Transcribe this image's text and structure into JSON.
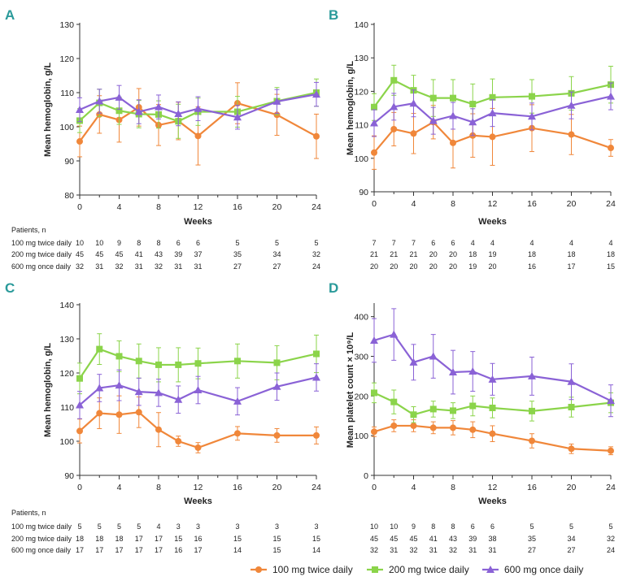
{
  "colors": {
    "orange": "#f0873a",
    "green": "#8bd44a",
    "purple": "#8a62d6",
    "letter": "#2a9a9a"
  },
  "legend": [
    {
      "name": "100 mg twice daily",
      "marker": "circle",
      "color": "#f0873a"
    },
    {
      "name": "200 mg twice daily",
      "marker": "square",
      "color": "#8bd44a"
    },
    {
      "name": "600 mg once daily",
      "marker": "triangle",
      "color": "#8a62d6"
    }
  ],
  "chart_data": [
    {
      "panel": "A",
      "type": "line",
      "xlabel": "Weeks",
      "ylabel": "Mean hemoglobin, g/L",
      "ylim": [
        80,
        130
      ],
      "yticks": [
        80,
        90,
        100,
        110,
        120,
        130
      ],
      "xticks": [
        0,
        4,
        8,
        12,
        16,
        20,
        24
      ],
      "series": [
        {
          "name": "100 mg twice daily",
          "x": [
            0,
            2,
            4,
            6,
            8,
            10,
            12,
            16,
            20,
            24
          ],
          "y": [
            95.7,
            103.6,
            102.0,
            105.7,
            100.5,
            101.7,
            97.3,
            106.9,
            103.5,
            97.2
          ],
          "err": [
            4.5,
            5.5,
            6.5,
            5.5,
            6.0,
            5.5,
            8.5,
            6.0,
            6.0,
            6.5
          ]
        },
        {
          "name": "200 mg twice daily",
          "x": [
            0,
            2,
            4,
            6,
            8,
            10,
            12,
            16,
            20,
            24
          ],
          "y": [
            101.8,
            107.0,
            104.7,
            103.7,
            103.6,
            101.6,
            104.4,
            104.4,
            107.5,
            110.0
          ],
          "err": [
            3.5,
            4.0,
            4.0,
            4.0,
            4.0,
            5.0,
            4.0,
            4.5,
            4.0,
            4.0
          ]
        },
        {
          "name": "600 mg once daily",
          "x": [
            0,
            2,
            4,
            6,
            8,
            10,
            12,
            16,
            20,
            24
          ],
          "y": [
            105.0,
            107.5,
            108.6,
            104.4,
            105.8,
            103.8,
            105.3,
            102.8,
            107.4,
            109.5
          ],
          "err": [
            3.5,
            3.5,
            3.5,
            3.5,
            3.5,
            3.5,
            3.5,
            3.5,
            3.5,
            3.5
          ]
        }
      ],
      "patients_header": "Patients, n",
      "patients": [
        {
          "label": "100 mg twice daily",
          "values": [
            "10",
            "10",
            "9",
            "8",
            "8",
            "6",
            "6",
            "5",
            "5",
            "5"
          ]
        },
        {
          "label": "200 mg twice daily",
          "values": [
            "45",
            "45",
            "45",
            "41",
            "43",
            "39",
            "37",
            "35",
            "34",
            "32"
          ]
        },
        {
          "label": "600 mg once daily",
          "values": [
            "32",
            "31",
            "32",
            "31",
            "32",
            "31",
            "31",
            "27",
            "27",
            "24"
          ]
        }
      ]
    },
    {
      "panel": "B",
      "type": "line",
      "xlabel": "Weeks",
      "ylabel": "Mean hemoglobin, g/L",
      "ylim": [
        90,
        140
      ],
      "yticks": [
        90,
        100,
        110,
        120,
        130,
        140
      ],
      "xticks": [
        0,
        4,
        8,
        12,
        16,
        20,
        24
      ],
      "series": [
        {
          "name": "100 mg twice daily",
          "x": [
            0,
            2,
            4,
            6,
            8,
            10,
            12,
            16,
            20,
            24
          ],
          "y": [
            101.7,
            108.7,
            107.4,
            110.8,
            104.6,
            106.8,
            106.4,
            109.0,
            107.1,
            103.1
          ],
          "err": [
            5.0,
            5.0,
            6.0,
            5.0,
            7.5,
            6.5,
            8.5,
            7.0,
            6.0,
            2.5
          ]
        },
        {
          "name": "200 mg twice daily",
          "x": [
            0,
            2,
            4,
            6,
            8,
            10,
            12,
            16,
            20,
            24
          ],
          "y": [
            115.3,
            123.3,
            120.3,
            118.0,
            118.0,
            116.2,
            118.2,
            118.5,
            119.4,
            122.0
          ],
          "err": [
            4.0,
            4.5,
            4.5,
            5.5,
            5.5,
            6.0,
            5.5,
            5.0,
            5.0,
            5.5
          ]
        },
        {
          "name": "600 mg once daily",
          "x": [
            0,
            2,
            4,
            6,
            8,
            10,
            12,
            16,
            20,
            24
          ],
          "y": [
            110.5,
            115.4,
            116.4,
            111.2,
            112.7,
            110.8,
            113.5,
            112.5,
            115.8,
            118.5
          ],
          "err": [
            4.0,
            4.0,
            4.0,
            4.0,
            4.0,
            4.0,
            4.0,
            4.0,
            4.0,
            4.0
          ]
        }
      ],
      "patients": [
        {
          "label": "100 mg twice daily",
          "values": [
            "7",
            "7",
            "7",
            "6",
            "6",
            "4",
            "4",
            "4",
            "4",
            "4"
          ]
        },
        {
          "label": "200 mg twice daily",
          "values": [
            "21",
            "21",
            "21",
            "20",
            "20",
            "18",
            "19",
            "18",
            "18",
            "18"
          ]
        },
        {
          "label": "600 mg once daily",
          "values": [
            "20",
            "20",
            "20",
            "20",
            "20",
            "19",
            "20",
            "16",
            "17",
            "15"
          ]
        }
      ]
    },
    {
      "panel": "C",
      "type": "line",
      "xlabel": "Weeks",
      "ylabel": "Mean hemoglobin, g/L",
      "ylim": [
        90,
        140
      ],
      "yticks": [
        90,
        100,
        110,
        120,
        130,
        140
      ],
      "xticks": [
        0,
        4,
        8,
        12,
        16,
        20,
        24
      ],
      "series": [
        {
          "name": "100 mg twice daily",
          "x": [
            0,
            2,
            4,
            6,
            8,
            10,
            12,
            16,
            20,
            24
          ],
          "y": [
            103.0,
            108.2,
            107.8,
            108.5,
            103.4,
            100.0,
            98.1,
            102.3,
            101.7,
            101.7
          ],
          "err": [
            3.5,
            4.5,
            5.5,
            4.5,
            5.0,
            1.5,
            1.5,
            2.0,
            2.0,
            2.5
          ]
        },
        {
          "name": "200 mg twice daily",
          "x": [
            0,
            2,
            4,
            6,
            8,
            10,
            12,
            16,
            20,
            24
          ],
          "y": [
            118.4,
            127.0,
            124.9,
            123.5,
            122.4,
            122.4,
            122.8,
            123.5,
            123.0,
            125.6
          ],
          "err": [
            4.5,
            4.5,
            4.5,
            5.0,
            5.0,
            5.0,
            4.5,
            5.0,
            5.0,
            5.5
          ]
        },
        {
          "name": "600 mg once daily",
          "x": [
            0,
            2,
            4,
            6,
            8,
            10,
            12,
            16,
            20,
            24
          ],
          "y": [
            110.6,
            115.6,
            116.4,
            114.5,
            114.2,
            112.2,
            115.0,
            111.7,
            116.0,
            118.7
          ],
          "err": [
            4.0,
            4.0,
            4.5,
            4.0,
            4.0,
            4.0,
            4.0,
            4.0,
            4.0,
            4.0
          ]
        }
      ],
      "patients_header": "Patients, n",
      "patients": [
        {
          "label": "100 mg twice daily",
          "values": [
            "5",
            "5",
            "5",
            "5",
            "4",
            "3",
            "3",
            "3",
            "3",
            "3"
          ]
        },
        {
          "label": "200 mg twice daily",
          "values": [
            "18",
            "18",
            "18",
            "17",
            "17",
            "15",
            "16",
            "15",
            "15",
            "15"
          ]
        },
        {
          "label": "600 mg once daily",
          "values": [
            "17",
            "17",
            "17",
            "17",
            "17",
            "16",
            "17",
            "14",
            "15",
            "14"
          ]
        }
      ]
    },
    {
      "panel": "D",
      "type": "line",
      "xlabel": "Weeks",
      "ylabel": "Mean platelet count × 10⁹/L",
      "ylim": [
        0,
        430
      ],
      "yticks": [
        0,
        100,
        200,
        300,
        400
      ],
      "xticks": [
        0,
        4,
        8,
        12,
        16,
        20,
        24
      ],
      "series": [
        {
          "name": "100 mg twice daily",
          "x": [
            0,
            2,
            4,
            6,
            8,
            10,
            12,
            16,
            20,
            24
          ],
          "y": [
            110,
            125,
            125,
            120,
            120,
            115,
            105,
            87,
            67,
            62
          ],
          "err": [
            12,
            15,
            15,
            15,
            18,
            20,
            20,
            18,
            12,
            10
          ]
        },
        {
          "name": "200 mg twice daily",
          "x": [
            0,
            2,
            4,
            6,
            8,
            10,
            12,
            16,
            20,
            24
          ],
          "y": [
            208,
            185,
            153,
            167,
            163,
            175,
            170,
            162,
            172,
            183
          ],
          "err": [
            25,
            30,
            20,
            20,
            20,
            25,
            25,
            25,
            25,
            25
          ]
        },
        {
          "name": "600 mg once daily",
          "x": [
            0,
            2,
            4,
            6,
            8,
            10,
            12,
            16,
            20,
            24
          ],
          "y": [
            340,
            355,
            285,
            300,
            260,
            262,
            242,
            250,
            236,
            188
          ],
          "err": [
            55,
            65,
            45,
            55,
            55,
            50,
            40,
            48,
            45,
            40
          ]
        }
      ],
      "patients": [
        {
          "label": "100 mg twice daily",
          "values": [
            "10",
            "10",
            "9",
            "8",
            "8",
            "6",
            "6",
            "5",
            "5",
            "5"
          ]
        },
        {
          "label": "200 mg twice daily",
          "values": [
            "45",
            "45",
            "45",
            "41",
            "43",
            "39",
            "38",
            "35",
            "34",
            "32"
          ]
        },
        {
          "label": "600 mg once daily",
          "values": [
            "32",
            "31",
            "32",
            "31",
            "32",
            "31",
            "31",
            "27",
            "27",
            "24"
          ]
        }
      ]
    }
  ]
}
